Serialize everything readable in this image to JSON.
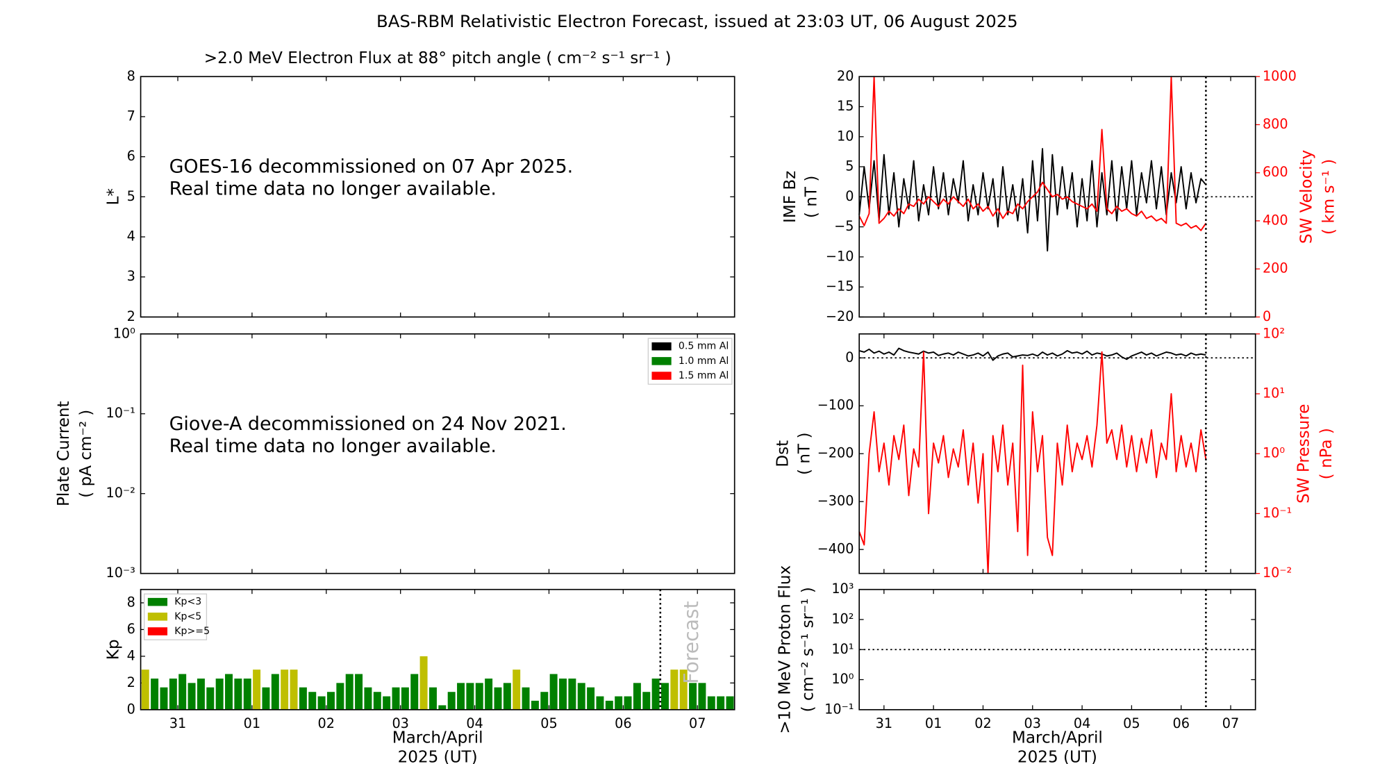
{
  "title": "BAS-RBM Relativistic Electron Forecast, issued at 23:03 UT, 06 August 2025",
  "chart_data": [
    {
      "type": "heatmap",
      "title": ">2.0 MeV Electron Flux at 88° pitch angle ( cm⁻² s⁻¹ sr⁻¹ )",
      "ylabel": "L*",
      "ylim": [
        2,
        8
      ],
      "yticks": [
        2,
        3,
        4,
        5,
        6,
        7,
        8
      ],
      "xlim": [
        -0.5,
        7.5
      ],
      "xticks": [
        0,
        1,
        2,
        3,
        4,
        5,
        6,
        7
      ],
      "annotation": [
        "GOES-16 decommissioned on 07 Apr 2025.",
        "Real time data no longer available."
      ]
    },
    {
      "type": "line",
      "ylabel": [
        "Plate Current",
        "( pA cm⁻² )"
      ],
      "log_y": true,
      "ylim": [
        0.001,
        1
      ],
      "yticks": [
        {
          "value": 0.001,
          "label": "10⁻³"
        },
        {
          "value": 0.01,
          "label": "10⁻²"
        },
        {
          "value": 0.1,
          "label": "10⁻¹"
        },
        {
          "value": 1,
          "label": "10⁰"
        }
      ],
      "xlim": [
        -0.5,
        7.5
      ],
      "xticks": [
        0,
        1,
        2,
        3,
        4,
        5,
        6,
        7
      ],
      "series": [
        {
          "name": "0.5 mm Al",
          "color": "#000000"
        },
        {
          "name": "1.0 mm Al",
          "color": "#008000"
        },
        {
          "name": "1.5 mm Al",
          "color": "#ff0000"
        }
      ],
      "legend": "upper right",
      "annotation": [
        "Giove-A decommissioned on 24 Nov 2021.",
        "Real time data no longer available."
      ]
    },
    {
      "type": "bar",
      "ylabel": "Kp",
      "ylim": [
        0,
        9
      ],
      "yticks": [
        0,
        2,
        4,
        6,
        8
      ],
      "xlim": [
        -0.5,
        7.5
      ],
      "xticks": [
        {
          "value": 0,
          "label": "31"
        },
        {
          "value": 1,
          "label": "01"
        },
        {
          "value": 2,
          "label": "02"
        },
        {
          "value": 3,
          "label": "03"
        },
        {
          "value": 4,
          "label": "04"
        },
        {
          "value": 5,
          "label": "05"
        },
        {
          "value": 6,
          "label": "06"
        },
        {
          "value": 7,
          "label": "07"
        }
      ],
      "xlabel": [
        "March/April",
        "2025 (UT)"
      ],
      "x": [
        -0.4375,
        -0.3125,
        -0.1875,
        -0.0625,
        0.0625,
        0.1875,
        0.3125,
        0.4375,
        0.5625,
        0.6875,
        0.8125,
        0.9375,
        1.0625,
        1.1875,
        1.3125,
        1.4375,
        1.5625,
        1.6875,
        1.8125,
        1.9375,
        2.0625,
        2.1875,
        2.3125,
        2.4375,
        2.5625,
        2.6875,
        2.8125,
        2.9375,
        3.0625,
        3.1875,
        3.3125,
        3.4375,
        3.5625,
        3.6875,
        3.8125,
        3.9375,
        4.0625,
        4.1875,
        4.3125,
        4.4375,
        4.5625,
        4.6875,
        4.8125,
        4.9375,
        5.0625,
        5.1875,
        5.3125,
        5.4375,
        5.5625,
        5.6875,
        5.8125,
        5.9375,
        6.0625,
        6.1875,
        6.3125,
        6.4375,
        6.5625,
        6.6875,
        6.8125,
        6.9375,
        7.0625,
        7.1875,
        7.3125,
        7.4375
      ],
      "values": [
        3,
        2.33,
        1.67,
        2.33,
        2.67,
        2,
        2.33,
        1.67,
        2.33,
        2.67,
        2.33,
        2.33,
        3,
        1.67,
        2.67,
        3,
        3,
        1.67,
        1.33,
        1,
        1.33,
        2,
        2.67,
        2.67,
        1.67,
        1.33,
        1,
        1.67,
        1.67,
        2.67,
        4,
        1.67,
        0.33,
        1.33,
        2,
        2,
        2,
        2.33,
        1.67,
        2,
        3,
        1.67,
        0.67,
        1.33,
        2.67,
        2.33,
        2.33,
        2,
        1.67,
        1,
        0.67,
        1,
        1,
        2,
        1.33,
        2.33,
        2,
        3,
        3,
        2,
        2,
        1,
        1,
        1
      ],
      "legend_items": [
        {
          "name": "Kp<3",
          "color": "#008000",
          "upper": 3
        },
        {
          "name": "Kp<5",
          "color": "#bfbf00",
          "upper": 5
        },
        {
          "name": "Kp>=5",
          "color": "#ff0000"
        }
      ],
      "legend": "upper left",
      "now": 6.5,
      "forecast_label": "Forecast"
    },
    {
      "type": "line",
      "ylabel": [
        "IMF Bz",
        "( nT )"
      ],
      "y2label": [
        "SW Velocity",
        "( km s⁻¹ )"
      ],
      "y2color": "#ff0000",
      "ylim": [
        -20,
        20
      ],
      "yticks": [
        {
          "value": -20,
          "label": "−20"
        },
        {
          "value": -15,
          "label": "−15"
        },
        {
          "value": -10,
          "label": "−10"
        },
        {
          "value": -5,
          "label": "−5"
        },
        0,
        5,
        10,
        15,
        20
      ],
      "y2lim": [
        0,
        1000
      ],
      "y2ticks": [
        0,
        200,
        400,
        600,
        800,
        1000
      ],
      "xlim": [
        -0.5,
        7.5
      ],
      "xticks": [
        0,
        1,
        2,
        3,
        4,
        5,
        6,
        7
      ],
      "x": [
        -0.5,
        -0.4,
        -0.3,
        -0.2,
        -0.1,
        0,
        0.1,
        0.2,
        0.3,
        0.4,
        0.5,
        0.6,
        0.7,
        0.8,
        0.9,
        1,
        1.1,
        1.2,
        1.3,
        1.4,
        1.5,
        1.6,
        1.7,
        1.8,
        1.9,
        2,
        2.1,
        2.2,
        2.3,
        2.4,
        2.5,
        2.6,
        2.7,
        2.8,
        2.9,
        3,
        3.1,
        3.2,
        3.3,
        3.4,
        3.5,
        3.6,
        3.7,
        3.8,
        3.9,
        4,
        4.1,
        4.2,
        4.3,
        4.4,
        4.5,
        4.6,
        4.7,
        4.8,
        4.9,
        5,
        5.1,
        5.2,
        5.3,
        5.4,
        5.5,
        5.6,
        5.7,
        5.8,
        5.9,
        6,
        6.1,
        6.2,
        6.3,
        6.4,
        6.5
      ],
      "series": [
        {
          "color": "#000000",
          "values": [
            -3,
            5,
            -2,
            6,
            -4,
            7,
            -3,
            4,
            -5,
            3,
            -2,
            6,
            -4,
            2,
            -3,
            5,
            -2,
            4,
            -3,
            3,
            -1,
            6,
            -4,
            2,
            -3,
            4,
            -2,
            3,
            -5,
            5,
            -3,
            2,
            -4,
            3,
            -6,
            6,
            -4,
            8,
            -9,
            7,
            -3,
            5,
            -2,
            4,
            -5,
            3,
            -4,
            6,
            -5,
            4,
            -3,
            6,
            -4,
            5,
            -2,
            6,
            -3,
            4,
            -1,
            6,
            -2,
            5,
            -3,
            4,
            -1,
            5,
            -2,
            4,
            -1,
            3,
            2
          ]
        },
        {
          "color": "#ff0000",
          "axis": "y2",
          "values": [
            420,
            380,
            430,
            1000,
            390,
            410,
            440,
            420,
            450,
            430,
            470,
            460,
            490,
            470,
            500,
            480,
            460,
            490,
            470,
            500,
            480,
            460,
            490,
            450,
            470,
            440,
            460,
            420,
            450,
            410,
            440,
            430,
            470,
            450,
            480,
            500,
            520,
            560,
            530,
            500,
            510,
            490,
            500,
            480,
            470,
            460,
            450,
            470,
            440,
            780,
            450,
            430,
            460,
            440,
            450,
            430,
            420,
            440,
            410,
            420,
            400,
            410,
            390,
            1000,
            390,
            380,
            390,
            370,
            380,
            360,
            390
          ]
        }
      ],
      "hline": 0,
      "now": 6.5
    },
    {
      "type": "line",
      "ylabel": [
        "Dst",
        "( nT )"
      ],
      "y2label": [
        "SW Pressure",
        "( nPa )"
      ],
      "y2color": "#ff0000",
      "ylim": [
        -450,
        50
      ],
      "yticks": [
        {
          "value": -400,
          "label": "−400"
        },
        {
          "value": -300,
          "label": "−300"
        },
        {
          "value": -200,
          "label": "−200"
        },
        {
          "value": -100,
          "label": "−100"
        },
        0
      ],
      "log_y2": true,
      "y2lim": [
        0.01,
        100
      ],
      "y2ticks": [
        {
          "value": 0.01,
          "label": "10⁻²"
        },
        {
          "value": 0.1,
          "label": "10⁻¹"
        },
        {
          "value": 1,
          "label": "10⁰"
        },
        {
          "value": 10,
          "label": "10¹"
        },
        {
          "value": 100,
          "label": "10²"
        }
      ],
      "xlim": [
        -0.5,
        7.5
      ],
      "xticks": [
        0,
        1,
        2,
        3,
        4,
        5,
        6,
        7
      ],
      "x": [
        -0.5,
        -0.4,
        -0.3,
        -0.2,
        -0.1,
        0,
        0.1,
        0.2,
        0.3,
        0.4,
        0.5,
        0.6,
        0.7,
        0.8,
        0.9,
        1,
        1.1,
        1.2,
        1.3,
        1.4,
        1.5,
        1.6,
        1.7,
        1.8,
        1.9,
        2,
        2.1,
        2.2,
        2.3,
        2.4,
        2.5,
        2.6,
        2.7,
        2.8,
        2.9,
        3,
        3.1,
        3.2,
        3.3,
        3.4,
        3.5,
        3.6,
        3.7,
        3.8,
        3.9,
        4,
        4.1,
        4.2,
        4.3,
        4.4,
        4.5,
        4.6,
        4.7,
        4.8,
        4.9,
        5,
        5.1,
        5.2,
        5.3,
        5.4,
        5.5,
        5.6,
        5.7,
        5.8,
        5.9,
        6,
        6.1,
        6.2,
        6.3,
        6.4,
        6.5
      ],
      "series": [
        {
          "color": "#000000",
          "values": [
            15,
            12,
            18,
            10,
            14,
            8,
            12,
            6,
            20,
            15,
            12,
            10,
            8,
            14,
            10,
            12,
            5,
            8,
            10,
            6,
            12,
            8,
            4,
            6,
            10,
            4,
            12,
            -5,
            4,
            8,
            10,
            2,
            4,
            6,
            5,
            8,
            4,
            12,
            6,
            10,
            4,
            8,
            15,
            10,
            12,
            8,
            14,
            6,
            10,
            8,
            4,
            6,
            10,
            2,
            -3,
            4,
            8,
            12,
            6,
            10,
            4,
            8,
            12,
            10,
            6,
            8,
            4,
            10,
            6,
            8,
            6
          ]
        },
        {
          "color": "#ff0000",
          "axis": "y2",
          "values": [
            0.05,
            0.03,
            1.0,
            5,
            0.5,
            1.5,
            0.3,
            2,
            0.8,
            3,
            0.2,
            1.2,
            0.6,
            50,
            0.1,
            1.5,
            0.7,
            2,
            0.4,
            1.2,
            0.6,
            2.5,
            0.3,
            1.5,
            0.15,
            1.0,
            0.01,
            2,
            0.5,
            3,
            0.3,
            1.5,
            0.05,
            30,
            0.02,
            5,
            0.5,
            2,
            0.04,
            0.02,
            1.5,
            0.3,
            3,
            0.5,
            1.5,
            0.8,
            2,
            0.6,
            3,
            50,
            1.5,
            2.5,
            0.8,
            3,
            0.6,
            2,
            0.5,
            1.8,
            0.7,
            2.5,
            0.4,
            1.5,
            0.8,
            10,
            0.5,
            2,
            0.6,
            1.5,
            0.5,
            2.5,
            0.8
          ]
        }
      ],
      "hline": 0,
      "now": 6.5
    },
    {
      "type": "line",
      "ylabel": [
        ">10 MeV Proton Flux",
        "( cm⁻² s⁻¹ sr⁻¹ )"
      ],
      "log_y": true,
      "ylim": [
        0.1,
        1000
      ],
      "yticks": [
        {
          "value": 0.1,
          "label": "10⁻¹"
        },
        {
          "value": 1,
          "label": "10⁰"
        },
        {
          "value": 10,
          "label": "10¹"
        },
        {
          "value": 100,
          "label": "10²"
        },
        {
          "value": 1000,
          "label": "10³"
        }
      ],
      "xlim": [
        -0.5,
        7.5
      ],
      "xticks": [
        {
          "value": 0,
          "label": "31"
        },
        {
          "value": 1,
          "label": "01"
        },
        {
          "value": 2,
          "label": "02"
        },
        {
          "value": 3,
          "label": "03"
        },
        {
          "value": 4,
          "label": "04"
        },
        {
          "value": 5,
          "label": "05"
        },
        {
          "value": 6,
          "label": "06"
        },
        {
          "value": 7,
          "label": "07"
        }
      ],
      "xlabel": [
        "March/April",
        "2025 (UT)"
      ],
      "hline": 10,
      "now": 6.5
    }
  ]
}
